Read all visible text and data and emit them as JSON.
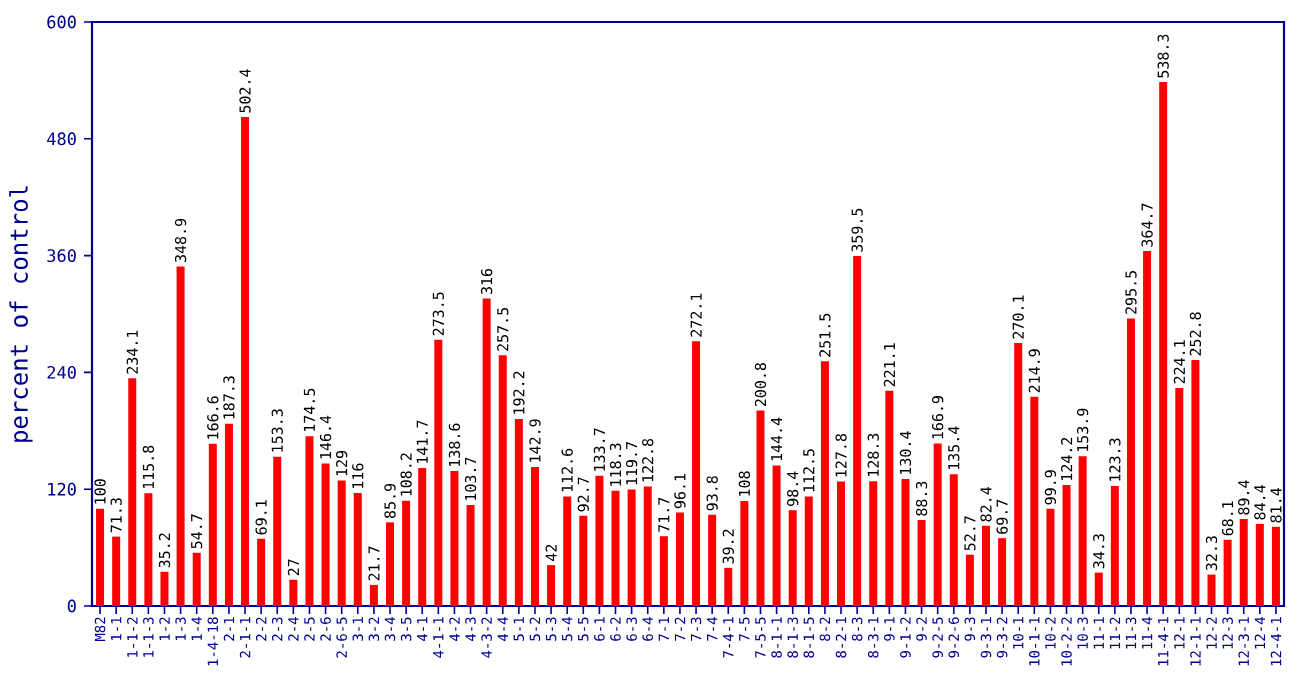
{
  "chart_data": {
    "type": "bar",
    "ylabel": "percent of control",
    "categories": [
      "M82",
      "1-1",
      "1-1-2",
      "1-1-3",
      "1-2",
      "1-3",
      "1-4",
      "1-4-18",
      "2-1",
      "2-1-1",
      "2-2",
      "2-3",
      "2-4",
      "2-5",
      "2-6",
      "2-6-5",
      "3-1",
      "3-2",
      "3-4",
      "3-5",
      "4-1",
      "4-1-1",
      "4-2",
      "4-3",
      "4-3-2",
      "4-4",
      "5-1",
      "5-2",
      "5-3",
      "5-4",
      "5-5",
      "6-1",
      "6-2",
      "6-3",
      "6-4",
      "7-1",
      "7-2",
      "7-3",
      "7-4",
      "7-4-1",
      "7-5",
      "7-5-5",
      "8-1-1",
      "8-1-3",
      "8-1-5",
      "8-2",
      "8-2-1",
      "8-3",
      "8-3-1",
      "9-1",
      "9-1-2",
      "9-2",
      "9-2-5",
      "9-2-6",
      "9-3",
      "9-3-1",
      "9-3-2",
      "10-1",
      "10-1-1",
      "10-2",
      "10-2-2",
      "10-3",
      "11-1",
      "11-2",
      "11-3",
      "11-4",
      "11-4-1",
      "12-1",
      "12-1-1",
      "12-2",
      "12-3",
      "12-3-1",
      "12-4",
      "12-4-1"
    ],
    "values": [
      100,
      71.3,
      234.1,
      115.8,
      35.2,
      348.9,
      54.7,
      166.6,
      187.3,
      502.4,
      69.1,
      153.3,
      27,
      174.5,
      146.4,
      129,
      116,
      21.7,
      85.9,
      108.2,
      141.7,
      273.5,
      138.6,
      103.7,
      316,
      257.5,
      192.2,
      142.9,
      42,
      112.6,
      92.7,
      133.7,
      118.3,
      119.7,
      122.8,
      71.7,
      96.1,
      272.1,
      93.8,
      39.2,
      108,
      200.8,
      144.4,
      98.4,
      112.5,
      251.5,
      127.8,
      359.5,
      128.3,
      221.1,
      130.4,
      88.3,
      166.9,
      135.4,
      52.7,
      82.4,
      69.7,
      270.1,
      214.9,
      99.9,
      124.2,
      153.9,
      34.3,
      123.3,
      295.5,
      364.7,
      538.3,
      224.1,
      252.8,
      32.3,
      68.1,
      89.4,
      84.4,
      81.4
    ],
    "color": "#ff0000",
    "ylim": [
      0,
      600
    ],
    "yticks": [
      0,
      120,
      240,
      360,
      480,
      600
    ],
    "data_labels": true
  }
}
